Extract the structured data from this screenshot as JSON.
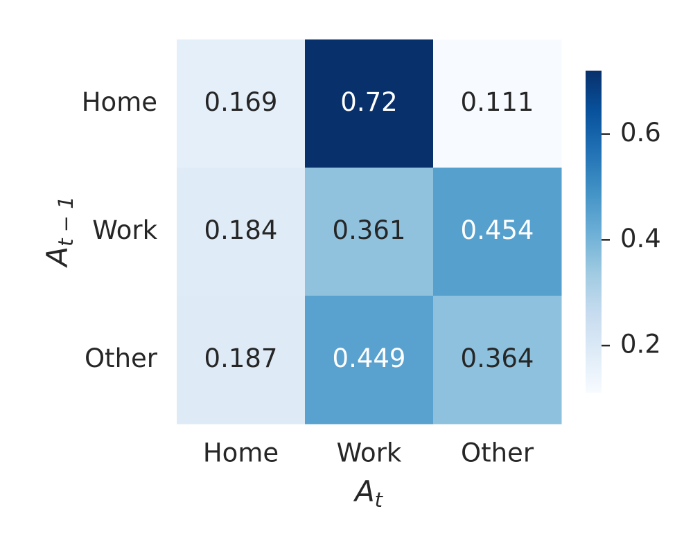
{
  "chart_data": {
    "type": "heatmap",
    "x_categories": [
      "Home",
      "Work",
      "Other"
    ],
    "y_categories": [
      "Home",
      "Work",
      "Other"
    ],
    "values": [
      [
        0.169,
        0.72,
        0.111
      ],
      [
        0.184,
        0.361,
        0.454
      ],
      [
        0.187,
        0.449,
        0.364
      ]
    ],
    "xlabel": {
      "base": "A",
      "sub": "t"
    },
    "ylabel": {
      "base": "A",
      "sub": "t − 1"
    },
    "colormap": "Blues",
    "vlim": [
      0.111,
      0.72
    ],
    "colorbar_ticks": [
      0.2,
      0.4,
      0.6
    ]
  }
}
